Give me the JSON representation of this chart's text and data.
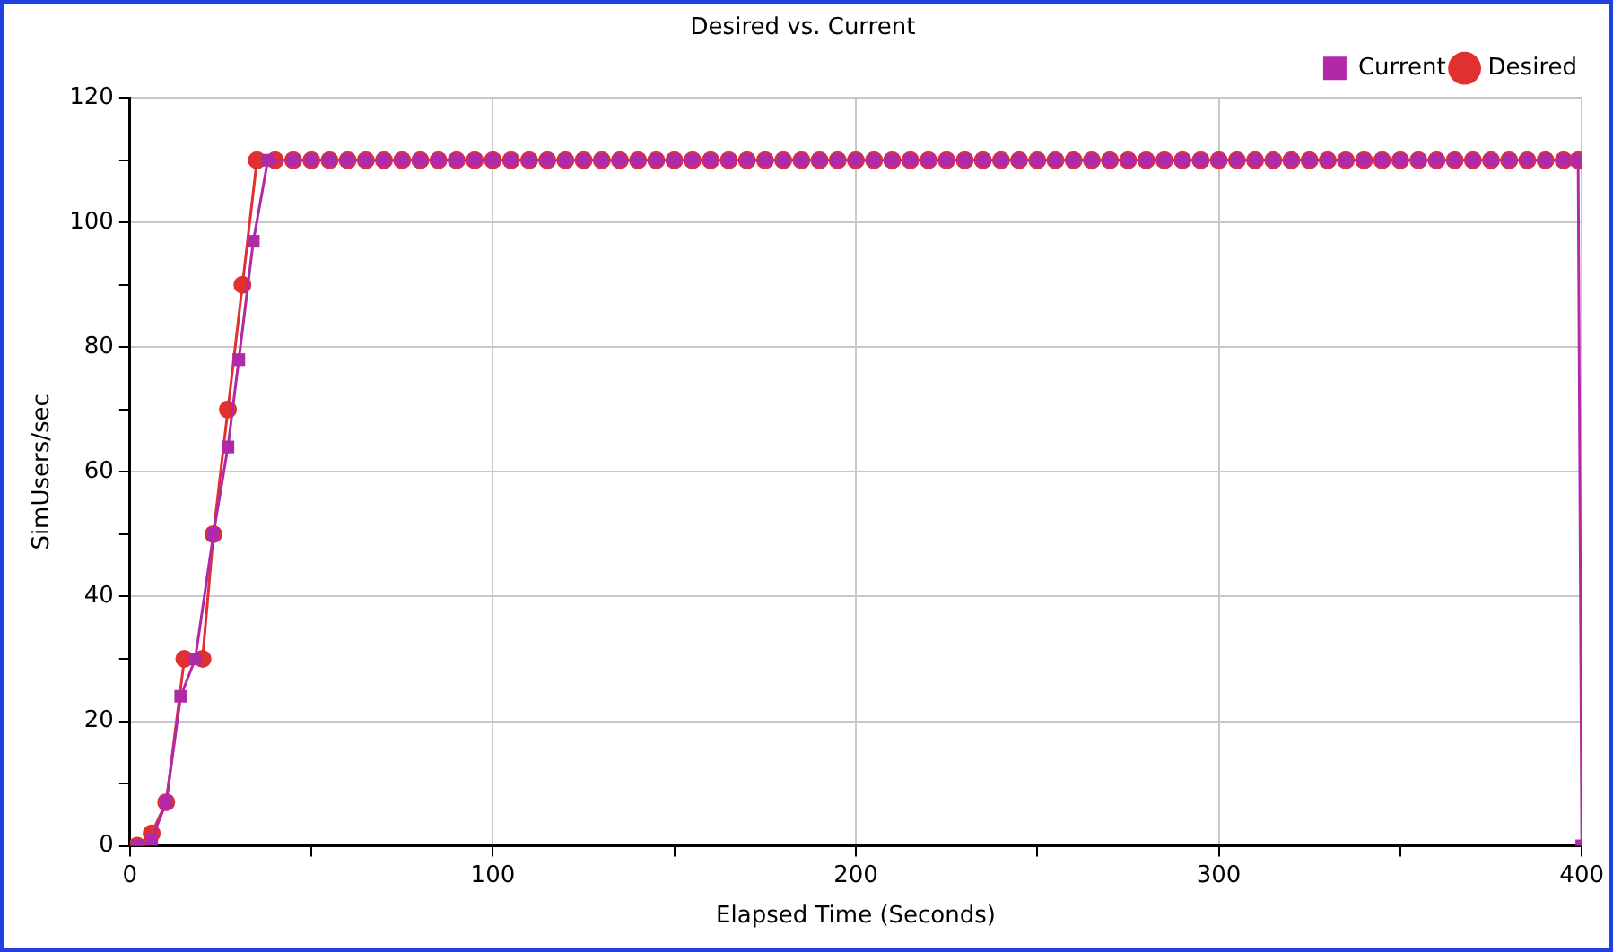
{
  "chart_data": {
    "type": "line",
    "title": "Desired vs. Current",
    "xlabel": "Elapsed Time (Seconds)",
    "ylabel": "SimUsers/sec",
    "xlim": [
      0,
      400
    ],
    "xticks": [
      0,
      {
        "value": 50,
        "label": null
      },
      100,
      {
        "value": 150,
        "label": null
      },
      200,
      {
        "value": 250,
        "label": null
      },
      300,
      {
        "value": 350,
        "label": null
      },
      400
    ],
    "ylim": [
      0,
      120
    ],
    "yticks": [
      0,
      {
        "value": 10,
        "label": null
      },
      20,
      {
        "value": 30,
        "label": null
      },
      40,
      {
        "value": 50,
        "label": null
      },
      60,
      {
        "value": 70,
        "label": null
      },
      80,
      {
        "value": 90,
        "label": null
      },
      100,
      {
        "value": 110,
        "label": null
      },
      120
    ],
    "grid": true,
    "legend": "top right",
    "series": [
      {
        "name": "Desired",
        "color": "#e03030",
        "marker": "circle",
        "x": [
          2,
          6,
          10,
          15,
          20,
          23,
          27,
          31,
          35,
          40,
          45,
          50,
          55,
          60,
          65,
          70,
          75,
          80,
          85,
          90,
          95,
          100,
          105,
          110,
          115,
          120,
          125,
          130,
          135,
          140,
          145,
          150,
          155,
          160,
          165,
          170,
          175,
          180,
          185,
          190,
          195,
          200,
          205,
          210,
          215,
          220,
          225,
          230,
          235,
          240,
          245,
          250,
          255,
          260,
          265,
          270,
          275,
          280,
          285,
          290,
          295,
          300,
          305,
          310,
          315,
          320,
          325,
          330,
          335,
          340,
          345,
          350,
          355,
          360,
          365,
          370,
          375,
          380,
          385,
          390,
          395,
          399
        ],
        "values": [
          0,
          2,
          7,
          30,
          30,
          50,
          70,
          90,
          110,
          110,
          110,
          110,
          110,
          110,
          110,
          110,
          110,
          110,
          110,
          110,
          110,
          110,
          110,
          110,
          110,
          110,
          110,
          110,
          110,
          110,
          110,
          110,
          110,
          110,
          110,
          110,
          110,
          110,
          110,
          110,
          110,
          110,
          110,
          110,
          110,
          110,
          110,
          110,
          110,
          110,
          110,
          110,
          110,
          110,
          110,
          110,
          110,
          110,
          110,
          110,
          110,
          110,
          110,
          110,
          110,
          110,
          110,
          110,
          110,
          110,
          110,
          110,
          110,
          110,
          110,
          110,
          110,
          110,
          110,
          110,
          110,
          110
        ]
      },
      {
        "name": "Current",
        "color": "#b02aa8",
        "marker": "square",
        "x": [
          2,
          6,
          10,
          14,
          18,
          23,
          27,
          30,
          34,
          38,
          45,
          50,
          55,
          60,
          65,
          70,
          75,
          80,
          85,
          90,
          95,
          100,
          105,
          110,
          115,
          120,
          125,
          130,
          135,
          140,
          145,
          150,
          155,
          160,
          165,
          170,
          175,
          180,
          185,
          190,
          195,
          200,
          205,
          210,
          215,
          220,
          225,
          230,
          235,
          240,
          245,
          250,
          255,
          260,
          265,
          270,
          275,
          280,
          285,
          290,
          295,
          300,
          305,
          310,
          315,
          320,
          325,
          330,
          335,
          340,
          345,
          350,
          355,
          360,
          365,
          370,
          375,
          380,
          385,
          390,
          395,
          399,
          400
        ],
        "values": [
          0,
          1,
          7,
          24,
          30,
          50,
          64,
          78,
          97,
          110,
          110,
          110,
          110,
          110,
          110,
          110,
          110,
          110,
          110,
          110,
          110,
          110,
          110,
          110,
          110,
          110,
          110,
          110,
          110,
          110,
          110,
          110,
          110,
          110,
          110,
          110,
          110,
          110,
          110,
          110,
          110,
          110,
          110,
          110,
          110,
          110,
          110,
          110,
          110,
          110,
          110,
          110,
          110,
          110,
          110,
          110,
          110,
          110,
          110,
          110,
          110,
          110,
          110,
          110,
          110,
          110,
          110,
          110,
          110,
          110,
          110,
          110,
          110,
          110,
          110,
          110,
          110,
          110,
          110,
          110,
          110,
          110,
          0
        ]
      }
    ]
  }
}
